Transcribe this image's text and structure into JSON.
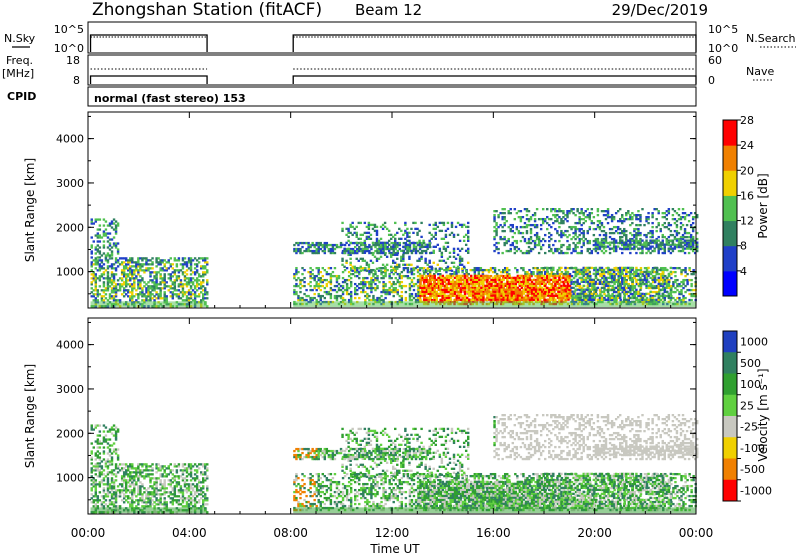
{
  "header": {
    "station": "Zhongshan Station (fitACF)",
    "beam": "Beam 12",
    "date": "29/Dec/2019"
  },
  "top_panels": {
    "nsky": {
      "label": "N.Sky",
      "tick_top": "10^5",
      "tick_bottom": "10^0",
      "right_label": "N.Search",
      "right_tick_top": "10^5",
      "right_tick_bottom": "10^0"
    },
    "freq": {
      "label_line1": "Freq.",
      "label_line2": "[MHz]",
      "tick_top": "18",
      "tick_bottom": "8",
      "right_label": "Nave",
      "right_tick_top": "60",
      "right_tick_bottom": "0"
    },
    "cpid": {
      "label": "CPID",
      "mode_text": "normal (fast stereo) 153"
    }
  },
  "chart_data": [
    {
      "type": "heatmap",
      "name": "power",
      "ylabel": "Slant Range [km]",
      "ylim": [
        180,
        4600
      ],
      "yticks": [
        "1000",
        "2000",
        "3000",
        "4000"
      ],
      "xlim": [
        0,
        24
      ],
      "colorbar": {
        "label": "Power [dB]",
        "tick_labels": [
          "4",
          "8",
          "12",
          "16",
          "20",
          "24",
          "28"
        ],
        "colors": [
          "#0000ff",
          "#2040c8",
          "#308060",
          "#50c050",
          "#f0d000",
          "#f08000",
          "#ff0000"
        ],
        "range": [
          0,
          30
        ]
      }
    },
    {
      "type": "heatmap",
      "name": "velocity",
      "ylabel": "Slant Range [km]",
      "ylim": [
        180,
        4600
      ],
      "yticks": [
        "1000",
        "2000",
        "3000",
        "4000"
      ],
      "xlim": [
        0,
        24
      ],
      "xlabel": "Time UT",
      "xticks": [
        "00:00",
        "04:00",
        "08:00",
        "12:00",
        "16:00",
        "20:00",
        "00:00"
      ],
      "colorbar": {
        "label": "Velocity [m s⁻¹]",
        "tick_labels": [
          "1000",
          "500",
          "100",
          "25",
          "-25",
          "-100",
          "-500",
          "-1000"
        ],
        "colors": [
          "#2040c0",
          "#308060",
          "#30a030",
          "#60d040",
          "#c8c8c0",
          "#f0d000",
          "#f08000",
          "#ff0000"
        ]
      }
    }
  ]
}
